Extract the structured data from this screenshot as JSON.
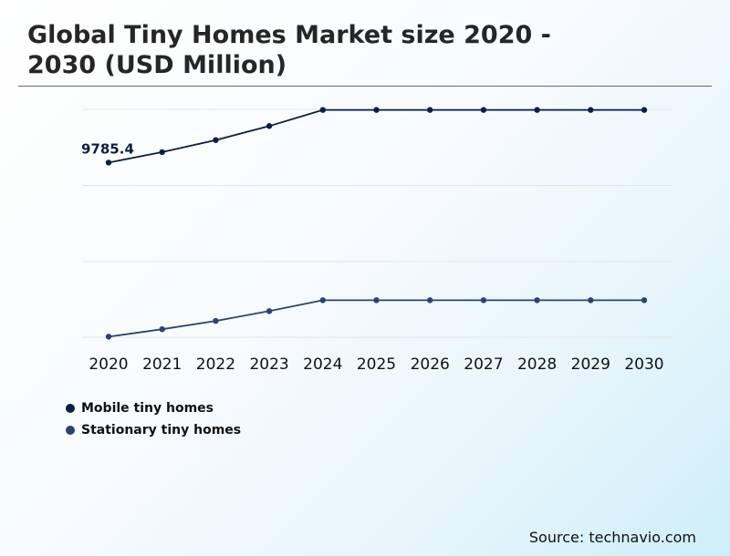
{
  "title": "Global Tiny Homes Market size 2020 - 2030 (USD Million)",
  "source": "Source: technavio.com",
  "chart_data": {
    "type": "line",
    "categories": [
      "2020",
      "2021",
      "2022",
      "2023",
      "2024",
      "2025",
      "2026",
      "2027",
      "2028",
      "2029",
      "2030"
    ],
    "series": [
      {
        "name": "Mobile tiny homes",
        "color": "#0d1f40",
        "values": [
          9785.4,
          10150,
          10570,
          11060,
          11620,
          11620,
          11620,
          11620,
          11620,
          11620,
          11620
        ]
      },
      {
        "name": "Stationary tiny homes",
        "color": "#2e4270",
        "values": [
          3720,
          3980,
          4270,
          4610,
          4990,
          4990,
          4990,
          4990,
          4990,
          4990,
          4990
        ]
      }
    ],
    "annotations": [
      {
        "series": 0,
        "index": 0,
        "label": "9785.4"
      }
    ],
    "ylim": [
      3700,
      11640
    ],
    "grid": true,
    "legend_position": "bottom-left"
  }
}
